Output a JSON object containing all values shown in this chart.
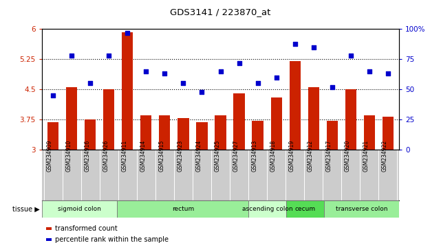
{
  "title": "GDS3141 / 223870_at",
  "samples": [
    "GSM234909",
    "GSM234910",
    "GSM234916",
    "GSM234926",
    "GSM234911",
    "GSM234914",
    "GSM234915",
    "GSM234923",
    "GSM234924",
    "GSM234925",
    "GSM234927",
    "GSM234913",
    "GSM234918",
    "GSM234919",
    "GSM234912",
    "GSM234917",
    "GSM234920",
    "GSM234921",
    "GSM234922"
  ],
  "bar_values": [
    3.68,
    4.55,
    3.75,
    4.5,
    5.93,
    3.85,
    3.85,
    3.78,
    3.68,
    3.85,
    4.4,
    3.72,
    4.3,
    5.2,
    4.55,
    3.72,
    4.5,
    3.85,
    3.82
  ],
  "blue_values": [
    45,
    78,
    55,
    78,
    97,
    65,
    63,
    55,
    48,
    65,
    72,
    55,
    60,
    88,
    85,
    52,
    78,
    65,
    63
  ],
  "bar_color": "#cc2200",
  "blue_color": "#0000cc",
  "ylim_left": [
    3.0,
    6.0
  ],
  "ylim_right": [
    0,
    100
  ],
  "yticks_left": [
    3.0,
    3.75,
    4.5,
    5.25,
    6.0
  ],
  "ytick_labels_left": [
    "3",
    "3.75",
    "4.5",
    "5.25",
    "6"
  ],
  "yticks_right": [
    0,
    25,
    50,
    75,
    100
  ],
  "ytick_labels_right": [
    "0",
    "25",
    "50",
    "75",
    "100%"
  ],
  "hlines": [
    3.75,
    4.5,
    5.25
  ],
  "tissue_groups": [
    {
      "label": "sigmoid colon",
      "start": 0,
      "end": 4,
      "color": "#ccffcc"
    },
    {
      "label": "rectum",
      "start": 4,
      "end": 11,
      "color": "#99ee99"
    },
    {
      "label": "ascending colon",
      "start": 11,
      "end": 13,
      "color": "#ccffcc"
    },
    {
      "label": "cecum",
      "start": 13,
      "end": 15,
      "color": "#55dd55"
    },
    {
      "label": "transverse colon",
      "start": 15,
      "end": 19,
      "color": "#99ee99"
    }
  ],
  "legend_bar_label": "transformed count",
  "legend_blue_label": "percentile rank within the sample",
  "tissue_label": "tissue",
  "label_bg_color": "#cccccc",
  "spine_color": "#000000"
}
